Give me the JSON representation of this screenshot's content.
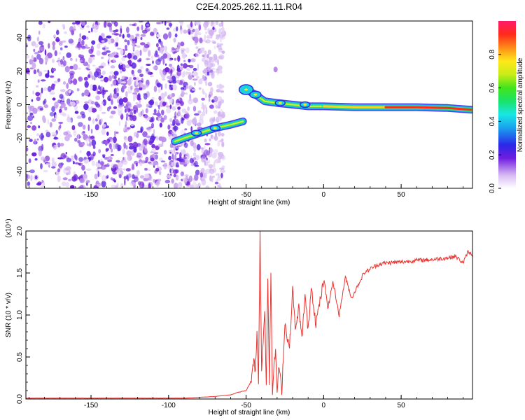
{
  "title": "C2E4.2025.262.11.11.R04",
  "chart_data": [
    {
      "type": "heatmap",
      "xlabel": "Height of straight line (km)",
      "ylabel": "Frequency (Hz)",
      "xlim": [
        -192,
        96
      ],
      "ylim": [
        -50,
        50
      ],
      "xticks": [
        -150,
        -100,
        -50,
        0,
        50
      ],
      "yticks": [
        -40,
        -20,
        0,
        20,
        40
      ],
      "colorbar": {
        "label": "Normalized spectral amplitude",
        "range": [
          0,
          1
        ],
        "ticks": [
          0.0,
          0.2,
          0.4,
          0.6,
          0.8
        ]
      },
      "ridge_points": [
        {
          "x": -96,
          "y": -22
        },
        {
          "x": -90,
          "y": -20
        },
        {
          "x": -80,
          "y": -17
        },
        {
          "x": -70,
          "y": -14
        },
        {
          "x": -60,
          "y": -12
        },
        {
          "x": -52,
          "y": -10
        },
        {
          "x": -50,
          "y": 9
        },
        {
          "x": -44,
          "y": 6
        },
        {
          "x": -38,
          "y": 2
        },
        {
          "x": -30,
          "y": 1
        },
        {
          "x": -20,
          "y": 0
        },
        {
          "x": -10,
          "y": -1
        },
        {
          "x": 0,
          "y": -1
        },
        {
          "x": 20,
          "y": -1.5
        },
        {
          "x": 40,
          "y": -1.5
        },
        {
          "x": 60,
          "y": -1.5
        },
        {
          "x": 80,
          "y": -2
        },
        {
          "x": 95,
          "y": -3
        }
      ],
      "noise_extent": [
        -192,
        -78
      ]
    },
    {
      "type": "line",
      "xlabel": "Height of straight line (km)",
      "ylabel": "SNR (10 * v/v)",
      "multiplier": "(x10⁴)",
      "xlim": [
        -192,
        96
      ],
      "ylim": [
        0,
        2.0
      ],
      "xticks": [
        -150,
        -100,
        -50,
        0,
        50
      ],
      "yticks": [
        0.0,
        0.5,
        1.0,
        1.5,
        2.0
      ],
      "series": [
        {
          "color": "#e8332f",
          "x": [
            -192,
            -150,
            -110,
            -90,
            -80,
            -70,
            -60,
            -55,
            -50,
            -47,
            -45,
            -44,
            -43,
            -42,
            -41,
            -40,
            -38,
            -37,
            -36,
            -35,
            -34,
            -33,
            -31,
            -30,
            -29,
            -27,
            -25,
            -22,
            -20,
            -18,
            -16,
            -14,
            -12,
            -10,
            -8,
            -5,
            -2,
            0,
            3,
            6,
            10,
            14,
            18,
            22,
            26,
            30,
            35,
            40,
            50,
            60,
            70,
            80,
            85,
            90,
            93,
            96
          ],
          "values": [
            0.01,
            0.01,
            0.01,
            0.01,
            0.02,
            0.03,
            0.05,
            0.08,
            0.1,
            0.2,
            0.5,
            0.3,
            0.8,
            0.2,
            2.0,
            0.3,
            1.1,
            0.15,
            1.45,
            0.2,
            1.5,
            0.1,
            0.6,
            0.05,
            0.4,
            0.1,
            0.9,
            0.6,
            1.3,
            0.8,
            1.1,
            0.7,
            1.25,
            0.8,
            1.35,
            0.9,
            1.2,
            1.4,
            1.1,
            1.4,
            1.0,
            1.45,
            1.2,
            1.35,
            1.5,
            1.55,
            1.6,
            1.62,
            1.63,
            1.65,
            1.66,
            1.68,
            1.7,
            1.62,
            1.75,
            1.72
          ]
        }
      ]
    }
  ]
}
